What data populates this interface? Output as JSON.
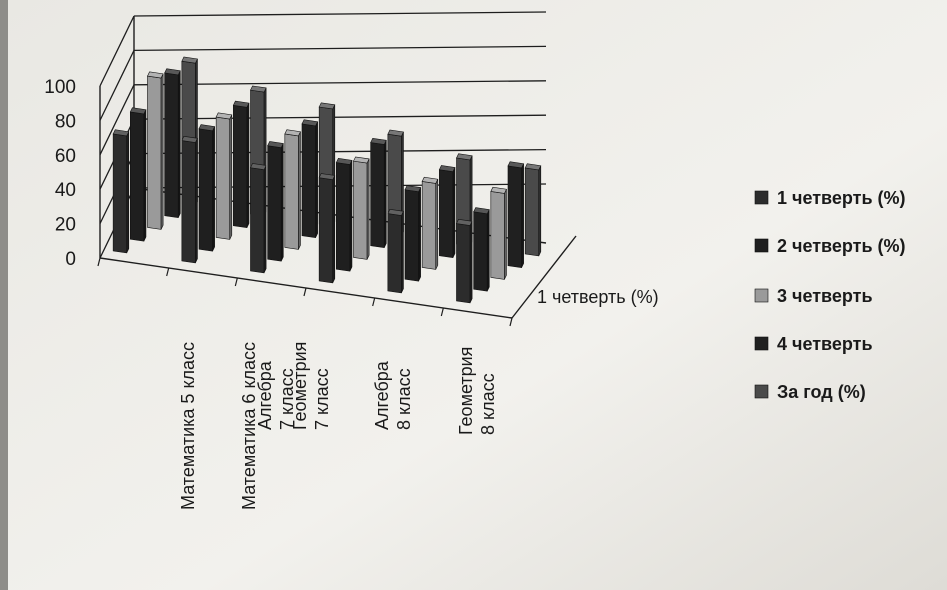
{
  "chart_data": {
    "type": "bar",
    "subtype": "3d-column",
    "title": "",
    "xlabel": "",
    "ylabel": "",
    "ylim": [
      0,
      100
    ],
    "yticks": [
      "0",
      "20",
      "40",
      "60",
      "80",
      "100"
    ],
    "grid": true,
    "legend_position": "right",
    "depth_axis_label": "1 четверть (%)",
    "categories": [
      [
        "Математика 5 класс"
      ],
      [
        "Математика 6 класс"
      ],
      [
        "Алгебра",
        "7 класс"
      ],
      [
        "Геометрия",
        "7 класс"
      ],
      [
        "Алгебра",
        "8 класс"
      ],
      [
        "Геометрия",
        "8 класс"
      ]
    ],
    "series": [
      {
        "name": "1 четверть (%)",
        "color": "#2c2c2c",
        "values": [
          68,
          70,
          60,
          60,
          45,
          45
        ]
      },
      {
        "name": "2 четверть (%)",
        "color": "#1f1f1f",
        "values": [
          74,
          70,
          66,
          62,
          52,
          45
        ]
      },
      {
        "name": "3 четверть",
        "color": "#9a9a9a",
        "values": [
          88,
          70,
          66,
          56,
          50,
          50
        ]
      },
      {
        "name": "4 четверть",
        "color": "#202020",
        "values": [
          83,
          70,
          65,
          60,
          50,
          58
        ]
      },
      {
        "name": "За год (%)",
        "color": "#4a4a4a",
        "values": [
          83,
          72,
          68,
          58,
          50,
          50
        ]
      }
    ]
  }
}
